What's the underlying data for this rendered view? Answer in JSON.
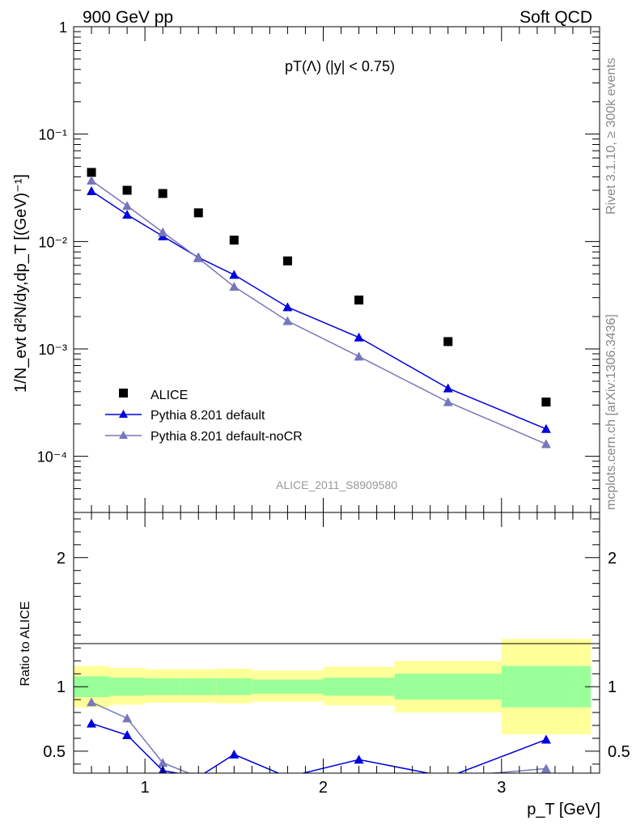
{
  "header": {
    "left": "900 GeV pp",
    "right": "Soft QCD"
  },
  "side": {
    "rivet": "Rivet 3.1.10, ≥ 300k events",
    "mcplots": "mcplots.cern.ch [arXiv:1306.3436]"
  },
  "chart_data": [
    {
      "type": "line",
      "title": "pT(Λ) (|y| < 0.75)",
      "ylabel": "1/N_evt d²N/dy,dp_T [(GeV)⁻¹]",
      "xlabel": "p_T [GeV]",
      "yscale": "log",
      "xlim": [
        0.6,
        3.55
      ],
      "ylim": [
        3e-05,
        1
      ],
      "y_ticks": [
        "1",
        "10⁻¹",
        "10⁻²",
        "10⁻³",
        "10⁻⁴"
      ],
      "watermark": "ALICE_2011_S8909580",
      "legend_position": "bottom-left",
      "x": [
        0.7,
        0.9,
        1.1,
        1.3,
        1.5,
        1.8,
        2.2,
        2.7,
        3.25
      ],
      "series": [
        {
          "name": "ALICE",
          "marker": "square",
          "color": "#000000",
          "values": [
            0.044,
            0.03,
            0.028,
            0.0185,
            0.0103,
            0.0066,
            0.00285,
            0.00117,
            0.00032
          ]
        },
        {
          "name": "Pythia 8.201 default",
          "marker": "triangle",
          "color": "#0000dd",
          "values": [
            0.0295,
            0.0178,
            0.0112,
            0.0071,
            0.0049,
            0.00245,
            0.00128,
            0.00043,
            0.00018
          ]
        },
        {
          "name": "Pythia 8.201 default-noCR",
          "marker": "triangle",
          "color": "#7777bb",
          "values": [
            0.037,
            0.0215,
            0.0122,
            0.007,
            0.0038,
            0.00182,
            0.00085,
            0.00032,
            0.00013
          ]
        }
      ]
    },
    {
      "type": "line",
      "ylabel": "Ratio to ALICE",
      "xlabel": "p_T [GeV]",
      "xlim": [
        0.6,
        3.55
      ],
      "ylim": [
        0.33,
        2.35
      ],
      "x_ticks": [
        "1",
        "2",
        "3"
      ],
      "y_ticks": [
        "0.5",
        "1",
        "2"
      ],
      "x": [
        0.7,
        0.9,
        1.1,
        1.3,
        1.5,
        1.8,
        2.2,
        2.7,
        3.25
      ],
      "bands": {
        "edges": [
          0.6,
          0.8,
          1.0,
          1.2,
          1.4,
          1.6,
          2.0,
          2.4,
          3.0,
          3.5
        ],
        "yellow_low": [
          0.84,
          0.86,
          0.875,
          0.875,
          0.87,
          0.885,
          0.855,
          0.8,
          0.63
        ],
        "yellow_high": [
          1.16,
          1.145,
          1.135,
          1.135,
          1.14,
          1.125,
          1.155,
          1.2,
          1.37
        ],
        "green_low": [
          0.92,
          0.93,
          0.935,
          0.935,
          0.935,
          0.945,
          0.93,
          0.9,
          0.84
        ],
        "green_high": [
          1.08,
          1.07,
          1.065,
          1.065,
          1.065,
          1.055,
          1.07,
          1.1,
          1.16
        ]
      },
      "series": [
        {
          "name": "Pythia 8.201 default",
          "color": "#0000dd",
          "values": [
            0.715,
            0.625,
            0.35,
            0.3,
            0.475,
            0.3,
            0.435,
            0.3,
            0.59
          ]
        },
        {
          "name": "Pythia 8.201 default-noCR",
          "color": "#7777bb",
          "values": [
            0.88,
            0.755,
            0.41,
            0.3,
            0.3,
            0.3,
            0.3,
            0.3,
            0.365
          ]
        }
      ]
    }
  ]
}
